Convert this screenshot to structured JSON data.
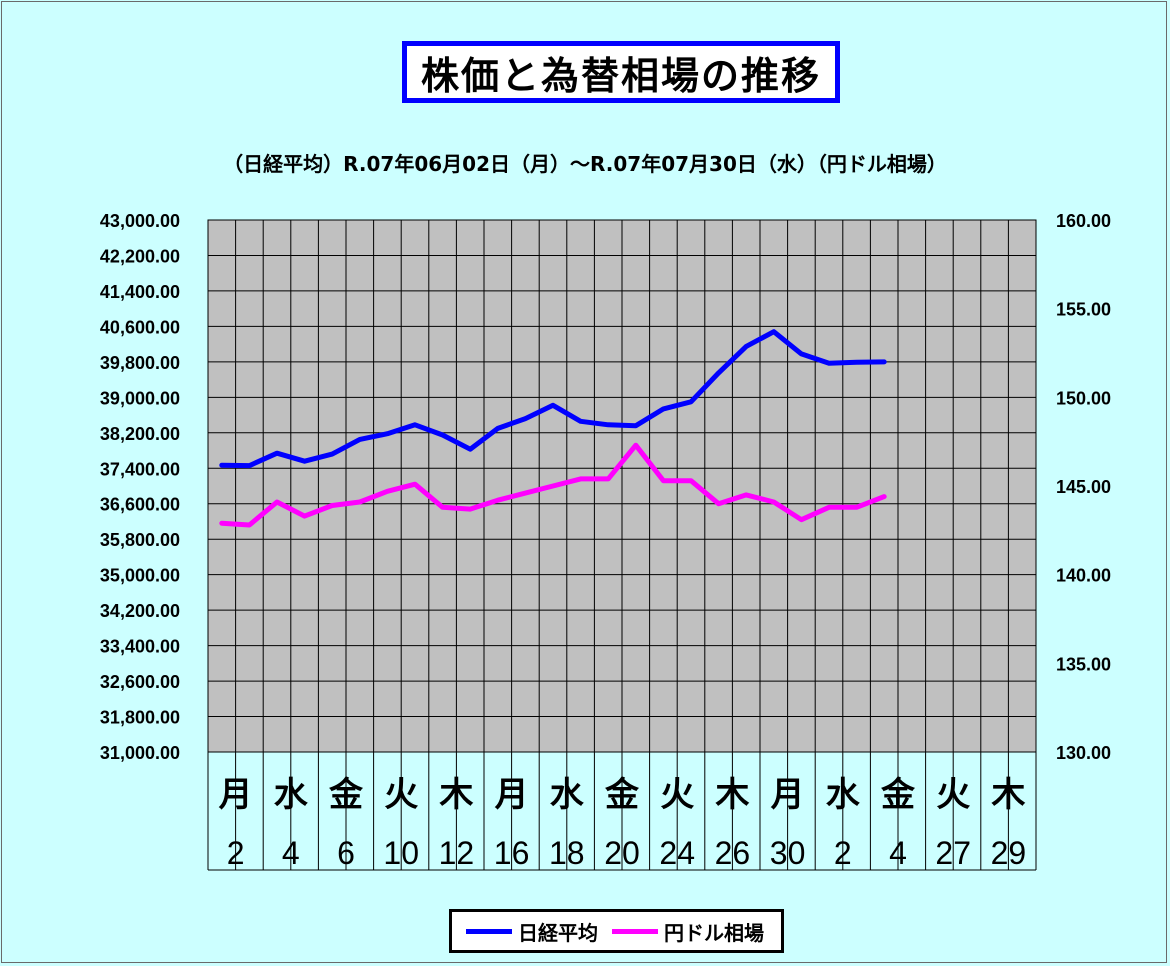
{
  "title": "株価と為替相場の推移",
  "subtitle": "（日経平均）R.07年06月02日（月）～R.07年07月30日（水）（円ドル相場）",
  "colors": {
    "nikkei": "#0000ff",
    "usdjpy": "#ff00ff",
    "plot_bg": "#c0c0c0",
    "page_bg": "#ccffff"
  },
  "chart_data": {
    "type": "line",
    "title": "株価と為替相場の推移",
    "grid": true,
    "legend_position": "bottom",
    "x_weekday_labels": [
      "月",
      "",
      "水",
      "",
      "金",
      "",
      "火",
      "",
      "木",
      "",
      "月",
      "",
      "水",
      "",
      "金",
      "",
      "火",
      "",
      "木",
      "",
      "月",
      "",
      "水",
      "",
      "金",
      "",
      "火",
      "",
      "木",
      ""
    ],
    "x_date_labels": [
      "2",
      "",
      "4",
      "",
      "6",
      "",
      "10",
      "",
      "12",
      "",
      "16",
      "",
      "18",
      "",
      "20",
      "",
      "24",
      "",
      "26",
      "",
      "30",
      "",
      "2",
      "",
      "4",
      "",
      "27",
      "",
      "29",
      ""
    ],
    "y_left": {
      "min": 31000,
      "max": 43000,
      "tick_step": 800,
      "tick_labels": [
        "43,000.00",
        "42,200.00",
        "41,400.00",
        "40,600.00",
        "39,800.00",
        "39,000.00",
        "38,200.00",
        "37,400.00",
        "36,600.00",
        "35,800.00",
        "35,000.00",
        "34,200.00",
        "33,400.00",
        "32,600.00",
        "31,800.00",
        "31,000.00"
      ]
    },
    "y_right": {
      "min": 130,
      "max": 160,
      "tick_step": 5,
      "tick_labels": [
        "160.00",
        "155.00",
        "150.00",
        "145.00",
        "140.00",
        "135.00",
        "130.00"
      ]
    },
    "series": [
      {
        "name": "日経平均",
        "axis": "left",
        "color": "#0000ff",
        "values": [
          37470,
          37460,
          37740,
          37560,
          37720,
          38050,
          38180,
          38380,
          38150,
          37830,
          38300,
          38520,
          38820,
          38460,
          38380,
          38360,
          38740,
          38900,
          39550,
          40150,
          40480,
          39980,
          39770,
          39790,
          39800
        ]
      },
      {
        "name": "円ドル相場",
        "axis": "right",
        "color": "#ff00ff",
        "values": [
          142.9,
          142.8,
          144.1,
          143.3,
          143.9,
          144.1,
          144.7,
          145.1,
          143.8,
          143.7,
          144.2,
          144.6,
          145.0,
          145.4,
          145.4,
          147.3,
          145.3,
          145.3,
          144.0,
          144.5,
          144.1,
          143.1,
          143.8,
          143.8,
          144.4
        ]
      }
    ]
  },
  "legend": {
    "nikkei_label": "日経平均",
    "usdjpy_label": "円ドル相場"
  }
}
